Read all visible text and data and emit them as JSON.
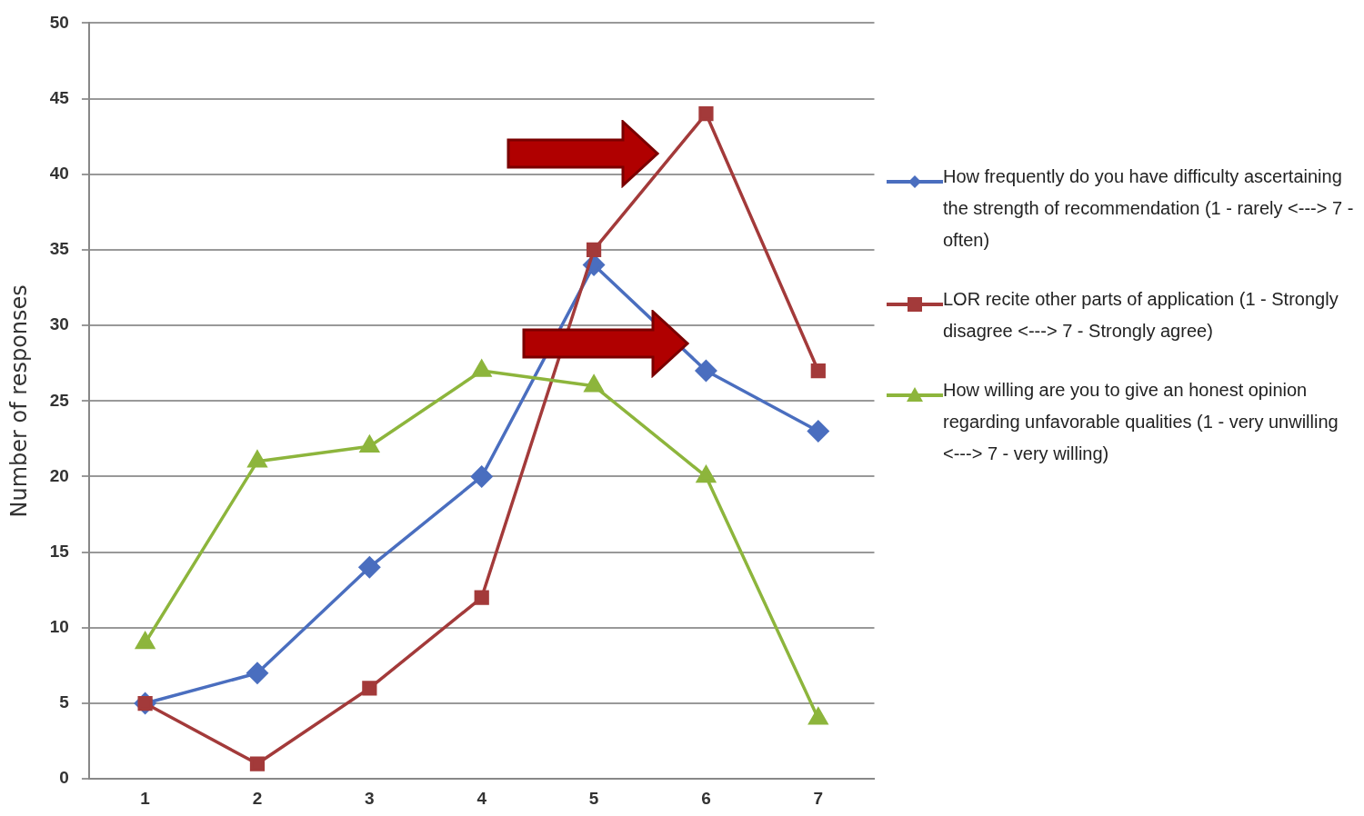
{
  "chart_data": {
    "type": "line",
    "ylabel": "Number of responses",
    "categories": [
      "1",
      "2",
      "3",
      "4",
      "5",
      "6",
      "7"
    ],
    "series": [
      {
        "name": "How frequently do you have difficulty ascertaining the strength of recommendation (1 - rarely <---> 7 - often)",
        "color": "#4a6ebf",
        "marker": "diamond",
        "values": [
          5,
          7,
          14,
          20,
          34,
          27,
          23
        ]
      },
      {
        "name": "LOR recite other parts of application (1 - Strongly disagree <---> 7 - Strongly agree)",
        "color": "#a33a3a",
        "marker": "square",
        "values": [
          5,
          1,
          6,
          12,
          35,
          44,
          27
        ]
      },
      {
        "name": "How willing are you to give an honest opinion regarding unfavorable qualities (1 - very unwilling <--->  7 - very willing)",
        "color": "#8db53c",
        "marker": "triangle",
        "values": [
          9,
          21,
          22,
          27,
          26,
          20,
          4
        ]
      }
    ],
    "ylim": [
      0,
      50
    ],
    "yticks": [
      0,
      5,
      10,
      15,
      20,
      25,
      30,
      35,
      40,
      45,
      50
    ],
    "grid": "y",
    "legend": "right"
  }
}
